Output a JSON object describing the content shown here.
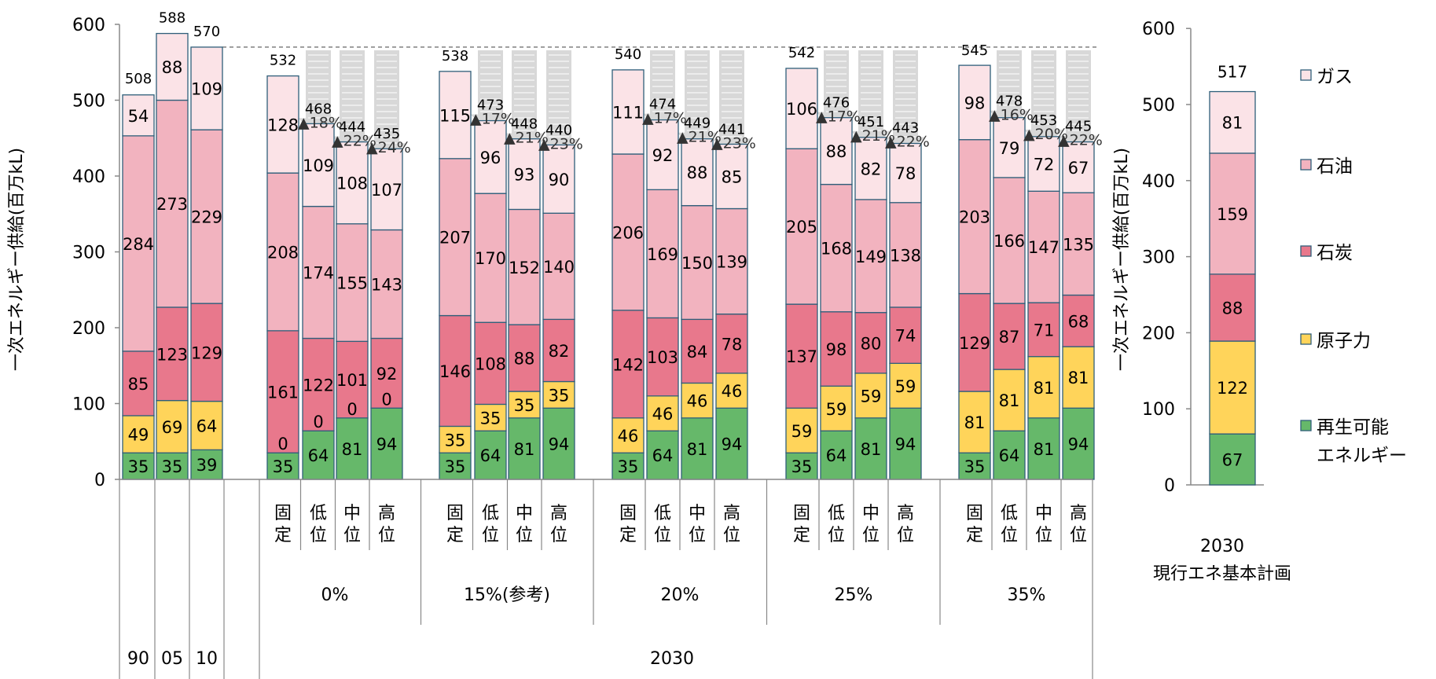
{
  "chart_data": [
    {
      "type": "bar",
      "stacked": true,
      "ylabel": "一次エネルギー供給(百万kL)",
      "ylim": [
        0,
        600
      ],
      "yticks": [
        0,
        100,
        200,
        300,
        400,
        500,
        600
      ],
      "grid": false,
      "legend_position": "right",
      "x_levels": {
        "level1": [
          "固定",
          "低位",
          "中位",
          "高位"
        ],
        "level2": [
          "0%",
          "15%(参考)",
          "20%",
          "25%",
          "35%"
        ],
        "level3": [
          "90",
          "05",
          "10",
          "2030"
        ]
      },
      "categories": [
        "90",
        "05",
        "10",
        "0% 固定",
        "0% 低位",
        "0% 中位",
        "0% 高位",
        "15%(参考) 固定",
        "15%(参考) 低位",
        "15%(参考) 中位",
        "15%(参考) 高位",
        "20% 固定",
        "20% 低位",
        "20% 中位",
        "20% 高位",
        "25% 固定",
        "25% 低位",
        "25% 中位",
        "25% 高位",
        "35% 固定",
        "35% 低位",
        "35% 中位",
        "35% 高位"
      ],
      "series": [
        {
          "name": "再生可能エネルギー",
          "values": [
            35,
            35,
            39,
            35,
            64,
            81,
            94,
            35,
            64,
            81,
            94,
            35,
            64,
            81,
            94,
            35,
            64,
            81,
            94,
            35,
            64,
            81,
            94
          ]
        },
        {
          "name": "原子力",
          "values": [
            49,
            69,
            64,
            0,
            0,
            0,
            0,
            35,
            35,
            35,
            35,
            46,
            46,
            46,
            46,
            59,
            59,
            59,
            59,
            81,
            81,
            81,
            81
          ]
        },
        {
          "name": "石炭",
          "values": [
            85,
            123,
            129,
            161,
            122,
            101,
            92,
            146,
            108,
            88,
            82,
            142,
            103,
            84,
            78,
            137,
            98,
            80,
            74,
            129,
            87,
            71,
            68
          ]
        },
        {
          "name": "石油",
          "values": [
            284,
            273,
            229,
            208,
            174,
            155,
            143,
            207,
            170,
            152,
            140,
            206,
            169,
            150,
            139,
            205,
            168,
            149,
            138,
            203,
            166,
            147,
            135
          ]
        },
        {
          "name": "ガス",
          "values": [
            54,
            88,
            109,
            128,
            109,
            108,
            107,
            115,
            96,
            93,
            90,
            111,
            92,
            88,
            85,
            106,
            88,
            82,
            78,
            98,
            79,
            72,
            67
          ]
        }
      ],
      "totals": [
        508,
        588,
        570,
        532,
        468,
        444,
        435,
        538,
        473,
        448,
        440,
        540,
        474,
        449,
        441,
        542,
        476,
        451,
        443,
        545,
        478,
        453,
        445
      ],
      "reduction_labels": [
        {
          "group": "0%",
          "values": [
            "▲18%",
            "▲22%",
            "▲24%"
          ]
        },
        {
          "group": "15%(参考)",
          "values": [
            "▲17%",
            "▲21%",
            "▲23%"
          ]
        },
        {
          "group": "20%",
          "values": [
            "▲17%",
            "▲21%",
            "▲23%"
          ]
        },
        {
          "group": "25%",
          "values": [
            "▲17%",
            "▲21%",
            "▲22%"
          ]
        },
        {
          "group": "35%",
          "values": [
            "▲16%",
            "▲20%",
            "▲22%"
          ]
        }
      ],
      "reference_line": 570
    },
    {
      "type": "bar",
      "stacked": true,
      "ylabel": "一次エネルギー供給(百万kL)",
      "ylim": [
        0,
        600
      ],
      "yticks": [
        0,
        100,
        200,
        300,
        400,
        500,
        600
      ],
      "categories": [
        "2030"
      ],
      "category_caption": [
        "2030",
        "現行エネ基本計画"
      ],
      "series": [
        {
          "name": "再生可能エネルギー",
          "values": [
            67
          ]
        },
        {
          "name": "原子力",
          "values": [
            122
          ]
        },
        {
          "name": "石炭",
          "values": [
            88
          ]
        },
        {
          "name": "石油",
          "values": [
            159
          ]
        },
        {
          "name": "ガス",
          "values": [
            81
          ]
        }
      ],
      "totals": [
        517
      ]
    }
  ],
  "legend": [
    {
      "label": "ガス",
      "color": "#fbe3e7"
    },
    {
      "label": "石油",
      "color": "#f2b3bf"
    },
    {
      "label": "石炭",
      "color": "#e8788c"
    },
    {
      "label": "原子力",
      "color": "#ffd45a"
    },
    {
      "label": "再生可能\nエネルギー",
      "color": "#66b86a"
    }
  ],
  "colors": {
    "再生可能エネルギー": "#66b86a",
    "原子力": "#ffd45a",
    "石炭": "#e8788c",
    "石油": "#f2b3bf",
    "ガス": "#fbe3e7",
    "bar_outline": "#2f5f7a",
    "arrow": "#d4d4d4",
    "axis": "#888888"
  }
}
